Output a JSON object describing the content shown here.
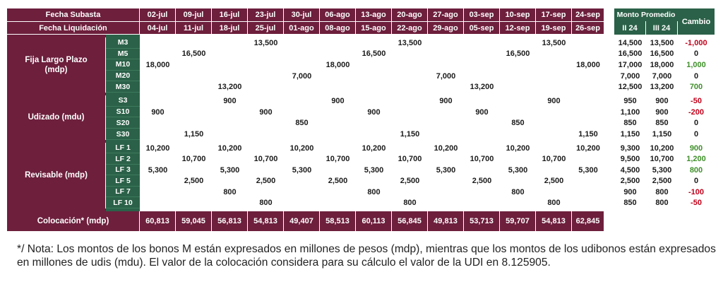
{
  "headers": {
    "fecha_subasta": "Fecha Subasta",
    "fecha_liquidacion": "Fecha Liquidación",
    "subasta_dates": [
      "02-jul",
      "09-jul",
      "16-jul",
      "23-jul",
      "30-jul",
      "06-ago",
      "13-ago",
      "20-ago",
      "27-ago",
      "03-sep",
      "10-sep",
      "17-sep",
      "24-sep"
    ],
    "liquidacion_dates": [
      "04-jul",
      "11-jul",
      "18-jul",
      "25-jul",
      "01-ago",
      "08-ago",
      "15-ago",
      "22-ago",
      "29-ago",
      "05-sep",
      "12-sep",
      "19-sep",
      "26-sep"
    ]
  },
  "groups": [
    {
      "label": "Fija Largo Plazo\n(mdp)",
      "rows": [
        {
          "tenor": "M3",
          "values": [
            "",
            "",
            "",
            "13,500",
            "",
            "",
            "",
            "13,500",
            "",
            "",
            "",
            "13,500",
            ""
          ]
        },
        {
          "tenor": "M5",
          "values": [
            "",
            "16,500",
            "",
            "",
            "",
            "",
            "16,500",
            "",
            "",
            "",
            "16,500",
            "",
            ""
          ]
        },
        {
          "tenor": "M10",
          "values": [
            "18,000",
            "",
            "",
            "",
            "",
            "18,000",
            "",
            "",
            "",
            "",
            "",
            "",
            "18,000"
          ]
        },
        {
          "tenor": "M20",
          "values": [
            "",
            "",
            "",
            "",
            "7,000",
            "",
            "",
            "",
            "7,000",
            "",
            "",
            "",
            ""
          ]
        },
        {
          "tenor": "M30",
          "values": [
            "",
            "",
            "13,200",
            "",
            "",
            "",
            "",
            "",
            "",
            "13,200",
            "",
            "",
            ""
          ]
        }
      ]
    },
    {
      "label": "Udizado  (mdu)",
      "rows": [
        {
          "tenor": "S3",
          "values": [
            "",
            "",
            "900",
            "",
            "",
            "900",
            "",
            "",
            "900",
            "",
            "",
            "900",
            ""
          ]
        },
        {
          "tenor": "S10",
          "values": [
            "900",
            "",
            "",
            "900",
            "",
            "",
            "900",
            "",
            "",
            "900",
            "",
            "",
            ""
          ]
        },
        {
          "tenor": "S20",
          "values": [
            "",
            "",
            "",
            "",
            "850",
            "",
            "",
            "",
            "",
            "",
            "850",
            "",
            ""
          ]
        },
        {
          "tenor": "S30",
          "values": [
            "",
            "1,150",
            "",
            "",
            "",
            "",
            "",
            "1,150",
            "",
            "",
            "",
            "",
            "1,150"
          ]
        }
      ]
    },
    {
      "label": "Revisable  (mdp)",
      "rows": [
        {
          "tenor": "LF 1",
          "values": [
            "10,200",
            "",
            "10,200",
            "",
            "10,200",
            "",
            "10,200",
            "",
            "10,200",
            "",
            "10,200",
            "",
            "10,200"
          ]
        },
        {
          "tenor": "LF 2",
          "values": [
            "",
            "10,700",
            "",
            "10,700",
            "",
            "10,700",
            "",
            "10,700",
            "",
            "10,700",
            "",
            "10,700",
            ""
          ]
        },
        {
          "tenor": "LF 3",
          "values": [
            "5,300",
            "",
            "5,300",
            "",
            "5,300",
            "",
            "5,300",
            "",
            "5,300",
            "",
            "5,300",
            "",
            "5,300"
          ]
        },
        {
          "tenor": "LF 5",
          "values": [
            "",
            "2,500",
            "",
            "2,500",
            "",
            "2,500",
            "",
            "2,500",
            "",
            "2,500",
            "",
            "2,500",
            ""
          ]
        },
        {
          "tenor": "LF 7",
          "values": [
            "",
            "",
            "800",
            "",
            "",
            "",
            "800",
            "",
            "",
            "",
            "800",
            "",
            ""
          ]
        },
        {
          "tenor": "LF 10",
          "values": [
            "",
            "",
            "",
            "800",
            "",
            "",
            "",
            "800",
            "",
            "",
            "",
            "800",
            ""
          ]
        }
      ]
    }
  ],
  "colocacion": {
    "label": "Colocación* (mdp)",
    "values": [
      "60,813",
      "59,045",
      "56,813",
      "54,813",
      "49,407",
      "58,513",
      "60,113",
      "56,845",
      "49,813",
      "53,713",
      "59,707",
      "54,813",
      "62,845"
    ]
  },
  "summary": {
    "monto_promedio": "Monto Promedio",
    "cambio": "Cambio",
    "col_ii": "II 24",
    "col_iii": "III 24",
    "colors": {
      "negative": "#c0001a",
      "positive": "#3f8f2a",
      "zero": "#1a1a1a"
    },
    "groups": [
      [
        {
          "ii": "14,500",
          "iii": "13,500",
          "cambio": "-1,000",
          "sign": "neg"
        },
        {
          "ii": "16,500",
          "iii": "16,500",
          "cambio": "0",
          "sign": "zero"
        },
        {
          "ii": "17,000",
          "iii": "18,000",
          "cambio": "1,000",
          "sign": "pos"
        },
        {
          "ii": "7,000",
          "iii": "7,000",
          "cambio": "0",
          "sign": "zero"
        },
        {
          "ii": "12,500",
          "iii": "13,200",
          "cambio": "700",
          "sign": "pos"
        }
      ],
      [
        {
          "ii": "950",
          "iii": "900",
          "cambio": "-50",
          "sign": "neg"
        },
        {
          "ii": "1,100",
          "iii": "900",
          "cambio": "-200",
          "sign": "neg"
        },
        {
          "ii": "850",
          "iii": "850",
          "cambio": "0",
          "sign": "zero"
        },
        {
          "ii": "1,150",
          "iii": "1,150",
          "cambio": "0",
          "sign": "zero"
        }
      ],
      [
        {
          "ii": "9,300",
          "iii": "10,200",
          "cambio": "900",
          "sign": "pos"
        },
        {
          "ii": "9,500",
          "iii": "10,700",
          "cambio": "1,200",
          "sign": "pos"
        },
        {
          "ii": "4,500",
          "iii": "5,300",
          "cambio": "800",
          "sign": "pos"
        },
        {
          "ii": "2,500",
          "iii": "2,500",
          "cambio": "0",
          "sign": "zero"
        },
        {
          "ii": "900",
          "iii": "800",
          "cambio": "-100",
          "sign": "neg"
        },
        {
          "ii": "850",
          "iii": "800",
          "cambio": "-50",
          "sign": "neg"
        }
      ]
    ]
  },
  "note": "*/ Nota: Los montos de los bonos M están expresados en millones de pesos (mdp), mientras que los montos de los udibonos están expresados en millones de udis (mdu). El valor de la colocación considera para su cálculo el valor de la UDI en 8.125905.",
  "theme": {
    "maroon": "#6d1f3c",
    "green": "#2b6148"
  }
}
